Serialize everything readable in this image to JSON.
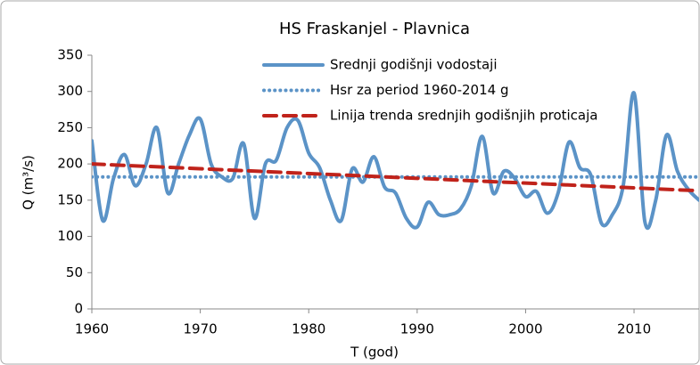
{
  "chart_data": {
    "type": "line",
    "title": "HS Fraskanjel - Plavnica",
    "xlabel": "T (god)",
    "ylabel": "Q (m³/s)",
    "xlim": [
      1960,
      2016
    ],
    "xticks": [
      1960,
      1970,
      1980,
      1990,
      2000,
      2010
    ],
    "ylim": [
      0,
      350
    ],
    "yticks": [
      0,
      50,
      100,
      150,
      200,
      250,
      300,
      350
    ],
    "series": [
      {
        "name": "Srednji godišnji vodostaji",
        "color": "#5b93c7",
        "style": "solid",
        "x": [
          1960,
          1961,
          1962,
          1963,
          1964,
          1965,
          1966,
          1967,
          1968,
          1969,
          1970,
          1971,
          1972,
          1973,
          1974,
          1975,
          1976,
          1977,
          1978,
          1979,
          1980,
          1981,
          1982,
          1983,
          1984,
          1985,
          1986,
          1987,
          1988,
          1989,
          1990,
          1991,
          1992,
          1993,
          1994,
          1995,
          1996,
          1997,
          1998,
          1999,
          2000,
          2001,
          2002,
          2003,
          2004,
          2005,
          2006,
          2007,
          2008,
          2009,
          2010,
          2011,
          2012,
          2013,
          2014,
          2015,
          2016
        ],
        "values": [
          232,
          122,
          180,
          213,
          170,
          200,
          250,
          160,
          200,
          240,
          262,
          200,
          182,
          180,
          228,
          125,
          200,
          205,
          250,
          260,
          215,
          195,
          150,
          122,
          193,
          175,
          210,
          168,
          160,
          125,
          113,
          147,
          130,
          130,
          138,
          170,
          238,
          160,
          190,
          180,
          155,
          162,
          132,
          160,
          230,
          195,
          185,
          118,
          130,
          170,
          298,
          120,
          150,
          240,
          190,
          165,
          150
        ]
      },
      {
        "name": "Hsr za period 1960-2014 g",
        "color": "#5b93c7",
        "style": "dotted",
        "x": [
          1960,
          2016
        ],
        "values": [
          182,
          182
        ]
      },
      {
        "name": "Linija trenda srednjih godišnjih proticaja",
        "color": "#c0231b",
        "style": "dashed",
        "x": [
          1960,
          2016
        ],
        "values": [
          200,
          163
        ]
      }
    ]
  }
}
